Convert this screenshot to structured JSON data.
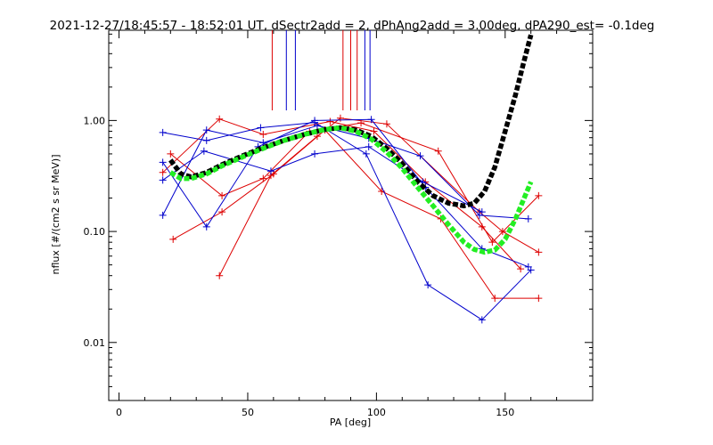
{
  "chart_data": {
    "type": "line",
    "title": "2021-12-27/18:45:57 - 18:52:01 UT, dSectr2add = 2, dPhAng2add = 3.00deg, dPA290_est=  -0.1deg",
    "xlabel": "PA [deg]",
    "ylabel": "nflux [#/(cm2 s sr MeV)]",
    "xlim": [
      -4,
      184
    ],
    "ylim": [
      0.003,
      6.5
    ],
    "yscale": "log",
    "grid": false,
    "x_ticks": [
      0,
      50,
      100,
      150
    ],
    "x_tick_labels": [
      "0",
      "50",
      "100",
      "150"
    ],
    "y_ticks": [
      0.01,
      0.1,
      1.0
    ],
    "y_tick_labels": [
      "0.01",
      "0.10",
      "1.00"
    ],
    "colors": {
      "red": "#dd0000",
      "blue": "#0000cc",
      "black": "#000000",
      "green": "#22ee22"
    },
    "series": [
      {
        "color": "red",
        "x": [
          20,
          40,
          56,
          74,
          94,
          124,
          145,
          163
        ],
        "y": [
          0.5,
          0.21,
          0.3,
          0.8,
          0.95,
          0.53,
          0.08,
          0.21
        ]
      },
      {
        "color": "red",
        "x": [
          21,
          40,
          60,
          80,
          102,
          125,
          146,
          163
        ],
        "y": [
          0.085,
          0.15,
          0.33,
          0.82,
          0.23,
          0.13,
          0.025,
          0.025
        ]
      },
      {
        "color": "red",
        "x": [
          39,
          59,
          77,
          86,
          104,
          140,
          149,
          163
        ],
        "y": [
          0.04,
          0.32,
          0.72,
          1.05,
          0.93,
          0.15,
          0.1,
          0.065
        ]
      },
      {
        "color": "red",
        "x": [
          17,
          39,
          56,
          82,
          99,
          119,
          141,
          156
        ],
        "y": [
          0.34,
          1.03,
          0.75,
          0.98,
          0.8,
          0.28,
          0.11,
          0.046
        ]
      },
      {
        "color": "blue",
        "x": [
          17,
          34,
          55,
          76,
          96,
          120,
          141,
          160
        ],
        "y": [
          0.78,
          0.66,
          0.86,
          0.96,
          0.5,
          0.033,
          0.016,
          0.045
        ]
      },
      {
        "color": "blue",
        "x": [
          17,
          34,
          54,
          76,
          98,
          119,
          141,
          159
        ],
        "y": [
          0.42,
          0.11,
          0.58,
          1.0,
          1.02,
          0.25,
          0.07,
          0.048
        ]
      },
      {
        "color": "blue",
        "x": [
          17,
          34,
          56,
          77,
          97,
          117,
          140,
          159
        ],
        "y": [
          0.14,
          0.82,
          0.63,
          0.9,
          0.69,
          0.48,
          0.14,
          0.13
        ]
      },
      {
        "color": "blue",
        "x": [
          17,
          33,
          59,
          76,
          97,
          118,
          141
        ],
        "y": [
          0.29,
          0.53,
          0.35,
          0.5,
          0.58,
          0.28,
          0.15
        ]
      }
    ],
    "fits": [
      {
        "color": "black",
        "x": [
          20,
          24,
          28,
          34,
          40,
          48,
          56,
          64,
          72,
          80,
          86,
          92,
          98,
          104,
          110,
          116,
          122,
          128,
          134,
          138,
          142,
          146,
          150,
          154,
          157,
          160
        ],
        "y": [
          0.44,
          0.33,
          0.31,
          0.34,
          0.4,
          0.48,
          0.57,
          0.66,
          0.75,
          0.83,
          0.86,
          0.82,
          0.72,
          0.56,
          0.41,
          0.28,
          0.21,
          0.18,
          0.17,
          0.18,
          0.23,
          0.38,
          0.8,
          1.7,
          3.2,
          5.9
        ]
      },
      {
        "color": "green",
        "x": [
          20,
          24,
          28,
          34,
          40,
          48,
          56,
          64,
          72,
          80,
          86,
          92,
          98,
          104,
          110,
          116,
          122,
          128,
          134,
          138,
          142,
          146,
          150,
          154,
          157,
          160
        ],
        "y": [
          0.34,
          0.3,
          0.3,
          0.33,
          0.39,
          0.47,
          0.56,
          0.66,
          0.75,
          0.83,
          0.86,
          0.8,
          0.68,
          0.52,
          0.37,
          0.25,
          0.17,
          0.115,
          0.08,
          0.069,
          0.065,
          0.068,
          0.085,
          0.13,
          0.19,
          0.28
        ]
      }
    ],
    "vertical_markers": [
      {
        "color": "red",
        "x": 59.5
      },
      {
        "color": "blue",
        "x": 65
      },
      {
        "color": "blue",
        "x": 68.5
      },
      {
        "color": "red",
        "x": 87
      },
      {
        "color": "red",
        "x": 90
      },
      {
        "color": "red",
        "x": 92.5
      },
      {
        "color": "blue",
        "x": 95.5
      },
      {
        "color": "blue",
        "x": 97.5
      }
    ]
  }
}
